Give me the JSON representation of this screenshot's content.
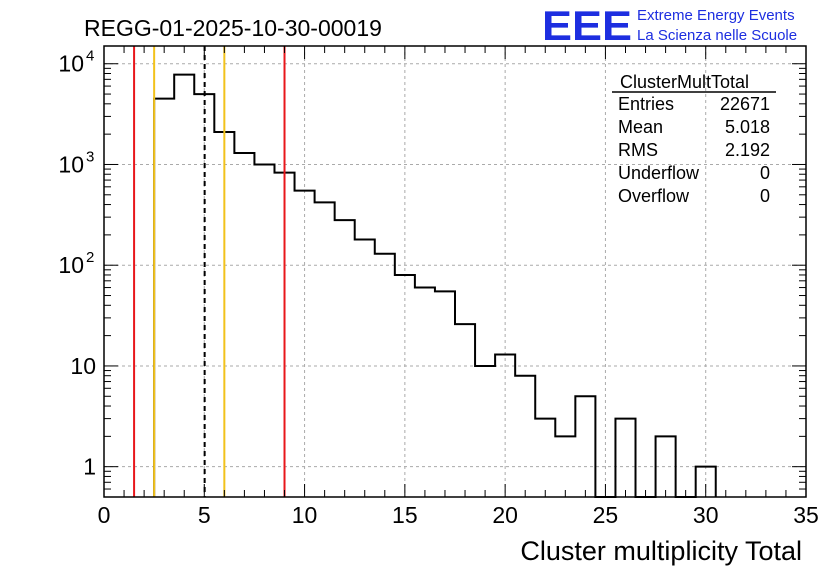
{
  "header": {
    "run_title": "REGG-01-2025-10-30-00019",
    "logo_text": "EEE",
    "logo_line1": "Extreme Energy Events",
    "logo_line2": "La Scienza nelle Scuole"
  },
  "stats_box": {
    "title": "ClusterMultTotal",
    "rows": [
      {
        "label": "Entries",
        "value": "22671"
      },
      {
        "label": "Mean",
        "value": "5.018"
      },
      {
        "label": "RMS",
        "value": "2.192"
      },
      {
        "label": "Underflow",
        "value": "0"
      },
      {
        "label": "Overflow",
        "value": "0"
      }
    ]
  },
  "colors": {
    "histogram": "#000000",
    "red_line": "#e8161b",
    "yellow_line": "#f2c21b",
    "mean_line": "#000000",
    "grid": "#aaaaaa",
    "logo": "#1d2ee0"
  },
  "chart_data": {
    "type": "histogram",
    "title": "REGG-01-2025-10-30-00019",
    "xlabel": "Cluster multiplicity Total",
    "ylabel": "",
    "yscale": "log",
    "xlim": [
      0,
      35
    ],
    "ylim": [
      0.5,
      15000
    ],
    "grid": true,
    "bin_width": 1,
    "bin_edges_start": 2.5,
    "counts": [
      4500,
      7800,
      5000,
      2100,
      1300,
      1000,
      830,
      550,
      420,
      280,
      180,
      130,
      80,
      60,
      55,
      26,
      10,
      13,
      8,
      3,
      2,
      5,
      0,
      3,
      0,
      2,
      0,
      1
    ],
    "x_ticks": [
      "0",
      "5",
      "10",
      "15",
      "20",
      "25",
      "30",
      "35"
    ],
    "x_tick_values": [
      0,
      5,
      10,
      15,
      20,
      25,
      30,
      35
    ],
    "y_tick_values": [
      1,
      10,
      100,
      1000,
      10000
    ],
    "y_tick_labels": [
      {
        "base": "1",
        "exp": ""
      },
      {
        "base": "10",
        "exp": ""
      },
      {
        "base": "10",
        "exp": "2"
      },
      {
        "base": "10",
        "exp": "3"
      },
      {
        "base": "10",
        "exp": "4"
      }
    ],
    "vertical_lines": [
      {
        "x": 1.5,
        "color": "red"
      },
      {
        "x": 2.5,
        "color": "yellow"
      },
      {
        "x": 5.018,
        "color": "black-dashed"
      },
      {
        "x": 6.0,
        "color": "yellow"
      },
      {
        "x": 9.0,
        "color": "red"
      }
    ]
  }
}
